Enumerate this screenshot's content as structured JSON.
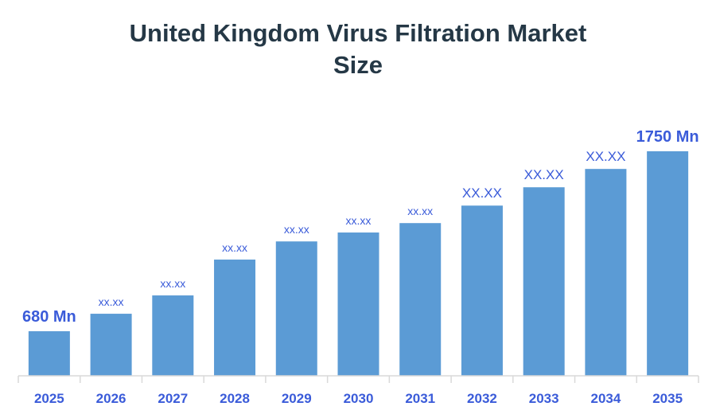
{
  "chart_data": {
    "type": "bar",
    "title_lines": [
      "United Kingdom Virus Filtration Market",
      "Size"
    ],
    "categories": [
      "2025",
      "2026",
      "2027",
      "2028",
      "2029",
      "2030",
      "2031",
      "2032",
      "2033",
      "2034",
      "2035"
    ],
    "values": [
      680,
      784,
      893,
      1106,
      1214,
      1267,
      1323,
      1427,
      1536,
      1645,
      1750
    ],
    "data_labels": [
      "680 Mn",
      "xx.xx",
      "xx.xx",
      "xx.xx",
      "xx.xx",
      "xx.xx",
      "xx.xx",
      "XX.XX",
      "XX.XX",
      "XX.XX",
      "1750 Mn"
    ],
    "label_sizes": [
      "large",
      "small",
      "small",
      "small",
      "small",
      "small",
      "small",
      "medium",
      "medium",
      "medium",
      "large"
    ],
    "xlabel": "",
    "ylabel": "",
    "ylim": [
      415,
      1750
    ],
    "grid": false,
    "legend": "none",
    "colors": {
      "bar": "#5b9bd5",
      "label": "#3a5bd9",
      "axis": "#d9d9d9",
      "title": "#253846"
    }
  }
}
